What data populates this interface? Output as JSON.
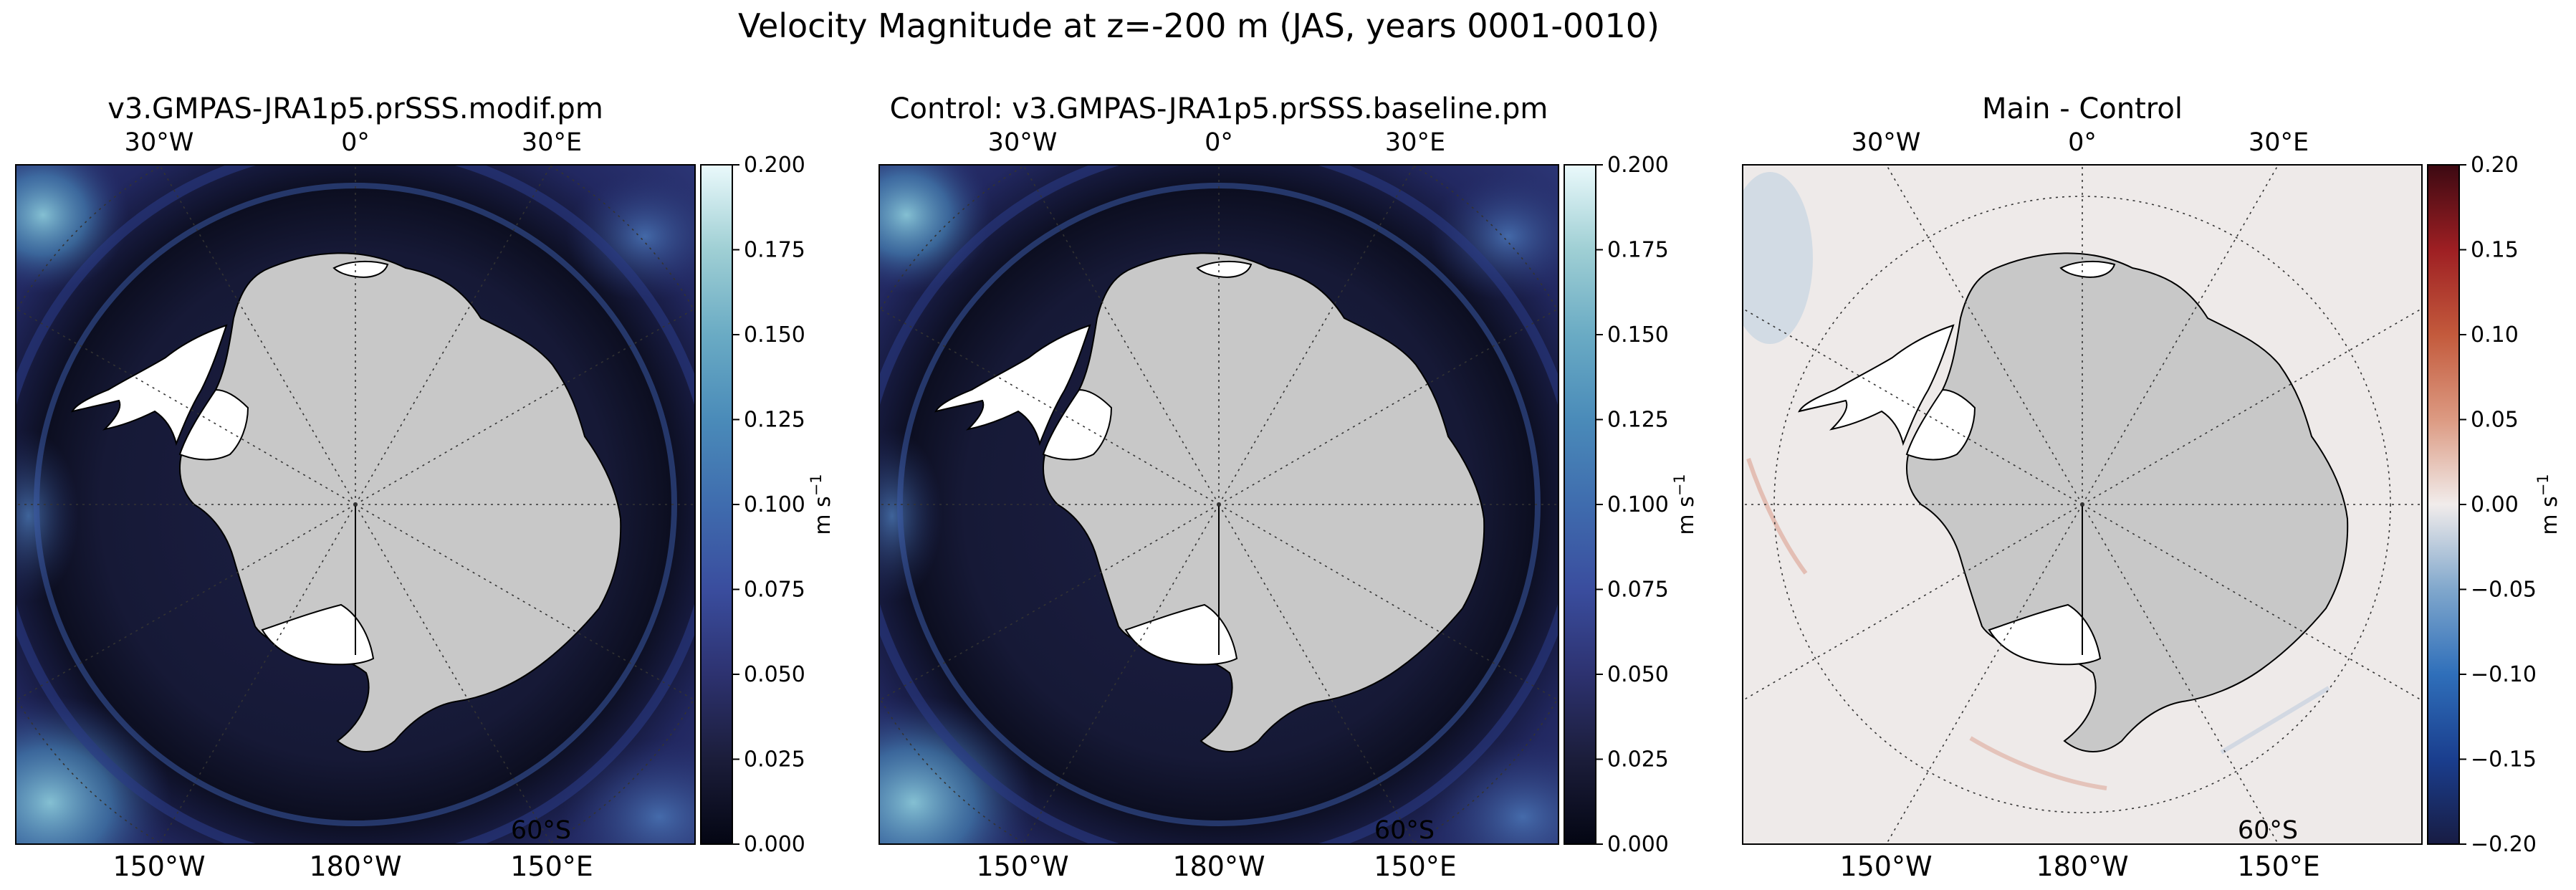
{
  "figure_title": "Velocity Magnitude at z=-200 m (JAS, years 0001-0010)",
  "chart_data": [
    {
      "type": "heatmap",
      "projection": "south-polar-stereographic",
      "title": "v3.GMPAS-JRA1p5.prSSS.modif.pm",
      "lon_labels_top": [
        "30°W",
        "0°",
        "30°E"
      ],
      "lon_labels_bottom": [
        "150°W",
        "180°W",
        "150°E"
      ],
      "lat_labels": [
        "60°S"
      ],
      "colormap": "ice",
      "field": "velocity magnitude",
      "colorbar": {
        "label": "m s",
        "label_superscript": "−1",
        "vmin": 0.0,
        "vmax": 0.2,
        "ticks": [
          "0.000",
          "0.025",
          "0.050",
          "0.075",
          "0.100",
          "0.125",
          "0.150",
          "0.175",
          "0.200"
        ],
        "stops": [
          "#040613",
          "#1b1d3a",
          "#2d3270",
          "#3a4d9e",
          "#3f6cae",
          "#4a8bb9",
          "#6aabc4",
          "#9fcfd4",
          "#eaf9fb"
        ]
      },
      "land_color": "#c8c8c8",
      "ice_shelf_color": "#ffffff"
    },
    {
      "type": "heatmap",
      "projection": "south-polar-stereographic",
      "title": "Control: v3.GMPAS-JRA1p5.prSSS.baseline.pm",
      "lon_labels_top": [
        "30°W",
        "0°",
        "30°E"
      ],
      "lon_labels_bottom": [
        "150°W",
        "180°W",
        "150°E"
      ],
      "lat_labels": [
        "60°S"
      ],
      "colormap": "ice",
      "field": "velocity magnitude",
      "colorbar": {
        "label": "m s",
        "label_superscript": "−1",
        "vmin": 0.0,
        "vmax": 0.2,
        "ticks": [
          "0.000",
          "0.025",
          "0.050",
          "0.075",
          "0.100",
          "0.125",
          "0.150",
          "0.175",
          "0.200"
        ],
        "stops": [
          "#040613",
          "#1b1d3a",
          "#2d3270",
          "#3a4d9e",
          "#3f6cae",
          "#4a8bb9",
          "#6aabc4",
          "#9fcfd4",
          "#eaf9fb"
        ]
      },
      "land_color": "#c8c8c8",
      "ice_shelf_color": "#ffffff"
    },
    {
      "type": "heatmap",
      "projection": "south-polar-stereographic",
      "title": "Main - Control",
      "lon_labels_top": [
        "30°W",
        "0°",
        "30°E"
      ],
      "lon_labels_bottom": [
        "150°W",
        "180°W",
        "150°E"
      ],
      "lat_labels": [
        "60°S"
      ],
      "colormap": "balance",
      "field": "velocity magnitude difference",
      "colorbar": {
        "label": "m s",
        "label_superscript": "−1",
        "vmin": -0.2,
        "vmax": 0.2,
        "ticks": [
          "−0.20",
          "−0.15",
          "−0.10",
          "−0.05",
          "0.00",
          "0.05",
          "0.10",
          "0.15",
          "0.20"
        ],
        "stops": [
          "#181c43",
          "#1a3e8e",
          "#2f6fba",
          "#80a7cc",
          "#f1eceb",
          "#dc9a82",
          "#c35a3c",
          "#9e1f23",
          "#3c0912"
        ]
      },
      "land_color": "#c8c8c8",
      "ice_shelf_color": "#ffffff"
    }
  ]
}
